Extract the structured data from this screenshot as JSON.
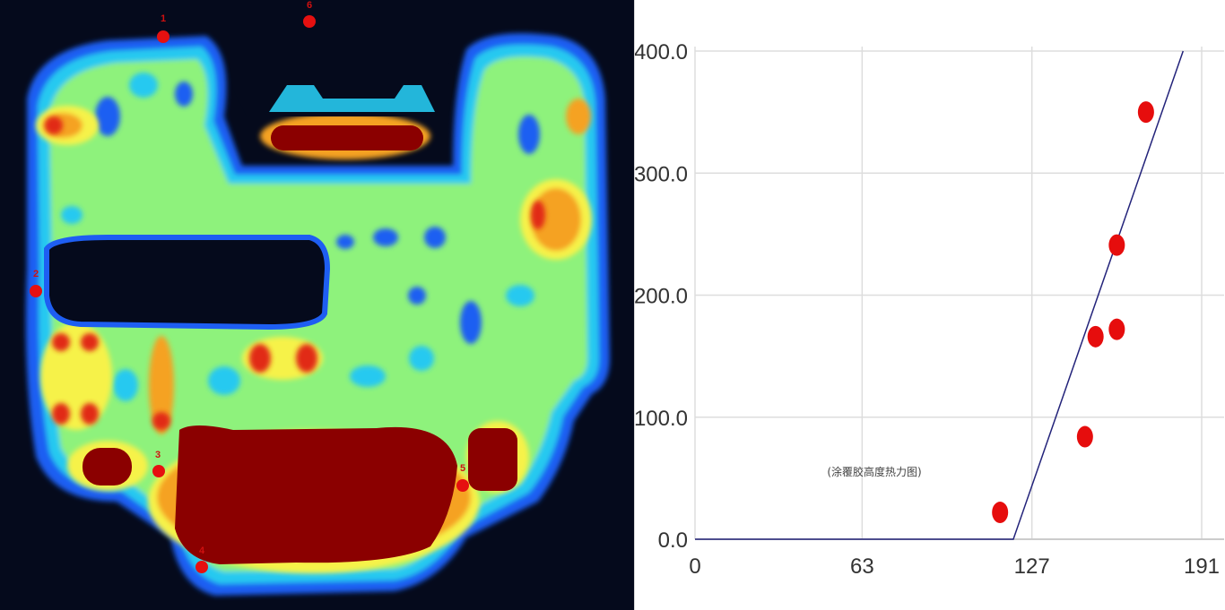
{
  "heatmap": {
    "markers": [
      {
        "label": "1"
      },
      {
        "label": "2"
      },
      {
        "label": "3"
      },
      {
        "label": "4"
      },
      {
        "label": "5"
      },
      {
        "label": "6"
      }
    ],
    "colors": {
      "background": "#050a1c",
      "blue": "#1e5ef2",
      "cyan": "#27c9f0",
      "green": "#8ef27c",
      "yellow": "#f6f24a",
      "orange": "#f5a223",
      "red": "#e12a12",
      "darkred": "#8b0000",
      "marker": "#e61010"
    }
  },
  "chart_data": {
    "type": "scatter",
    "title": "",
    "annotation": "(涂覆胶高度热力图)",
    "xlabel": "",
    "ylabel": "",
    "x_ticks": [
      "0",
      "63",
      "127",
      "191"
    ],
    "y_ticks": [
      "0.0",
      "100.0",
      "200.0",
      "300.0",
      "400.0"
    ],
    "xlim": [
      0,
      191
    ],
    "ylim": [
      0,
      400
    ],
    "grid": true,
    "series": [
      {
        "kind": "points",
        "color": "#e60d0d",
        "x": [
          115,
          147,
          151,
          159,
          159,
          170
        ],
        "y": [
          22,
          84,
          166,
          172,
          241,
          350
        ]
      },
      {
        "kind": "line",
        "color": "#23237a",
        "x": [
          0,
          120,
          184
        ],
        "y": [
          0,
          0,
          400
        ]
      }
    ]
  }
}
